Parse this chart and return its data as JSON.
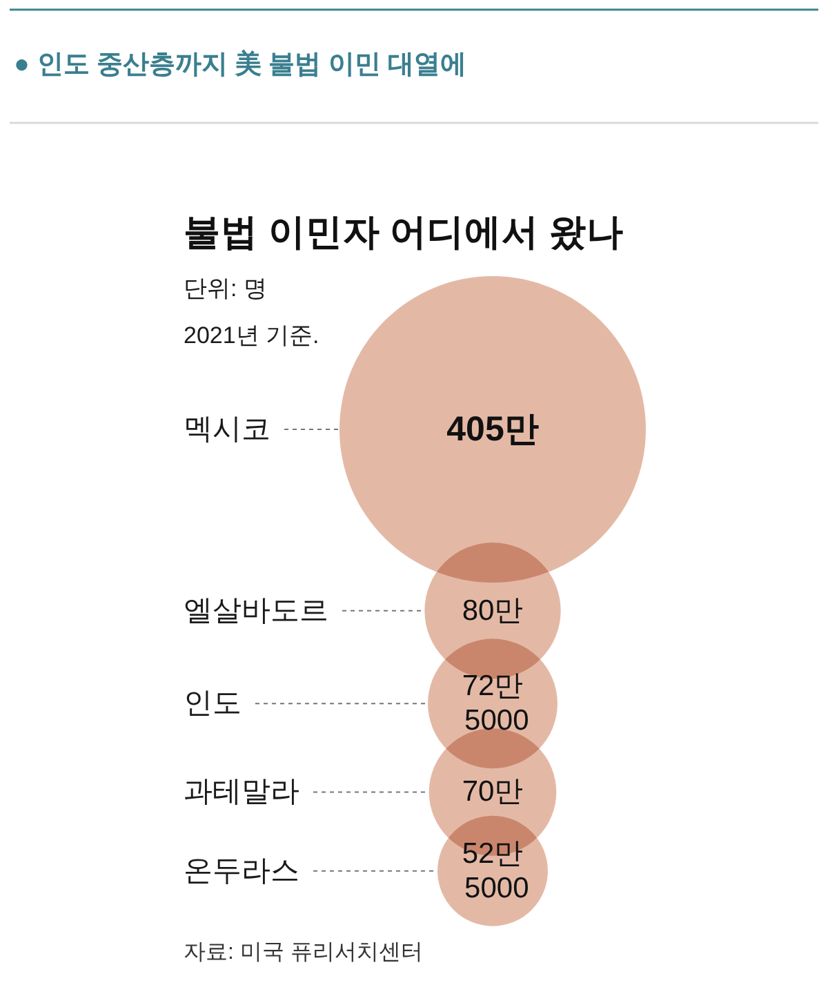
{
  "chart_data": {
    "type": "other",
    "title": "● 인도 중산층까지 美 불법 이민 대열에",
    "subtitle": "불법 이민자 어디에서 왔나",
    "annotations": [
      "단위: 명",
      "2021년 기준.",
      "자료: 미국 퓨리서치센터"
    ],
    "categories": [
      "멕시코",
      "엘살바도르",
      "인도",
      "과테말라",
      "온두라스"
    ],
    "values": [
      405,
      80,
      72.5,
      70,
      52.5
    ],
    "value_labels": [
      "405만",
      "80만",
      "72만 5000",
      "70만",
      "52만 5000"
    ],
    "color": "#e3b9a6"
  }
}
